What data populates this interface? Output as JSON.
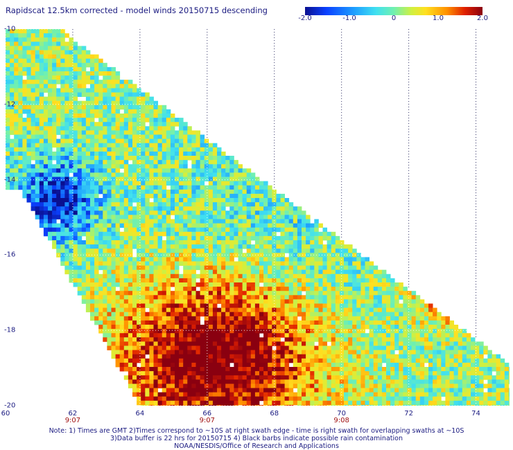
{
  "title": "Rapidscat 12.5km corrected - model winds 20150715 descending",
  "colorbar": {
    "ticks": [
      {
        "label": "-2.0",
        "value": -2.0
      },
      {
        "label": "-1.0",
        "value": -1.0
      },
      {
        "label": "0",
        "value": 0
      },
      {
        "label": "1.0",
        "value": 1.0
      },
      {
        "label": "2.0",
        "value": 2.0
      }
    ],
    "colors": [
      "#0a1090",
      "#0a40ff",
      "#1ea0ff",
      "#40e0f0",
      "#70f0b0",
      "#d0f040",
      "#ffe020",
      "#ff9000",
      "#e02000",
      "#8a0010"
    ]
  },
  "map": {
    "lon_range": [
      60,
      75
    ],
    "lat_range": [
      -20,
      -10
    ],
    "lon_ticks": [
      "60",
      "62",
      "64",
      "66",
      "68",
      "70",
      "72",
      "74"
    ],
    "lat_ticks": [
      "-10",
      "-12",
      "-14",
      "-16",
      "-18",
      "-20"
    ],
    "time_labels": [
      {
        "lon": 62,
        "label": "9:07"
      },
      {
        "lon": 66,
        "label": "9:07"
      },
      {
        "lon": 70,
        "label": "9:08"
      }
    ],
    "gridlines": "dotted",
    "swath_edge_lat_at_lon60": -10,
    "swath_edge_lon_at_lat20": 75,
    "hot_spot": {
      "lon": 66.3,
      "lat": -18.6,
      "value": 2.0
    },
    "cold_spot": {
      "lon": 61.5,
      "lat": -14.5,
      "value": -2.0
    }
  },
  "notes": [
    "Note: 1) Times are GMT 2)Times correspond to ~10S at right swath edge - time is right swath for overlapping swaths at ~10S",
    "3)Data buffer is 22 hrs for 20150715 4) Black barbs indicate possible rain contamination",
    "NOAA/NESDIS/Office of Research and Applications"
  ]
}
